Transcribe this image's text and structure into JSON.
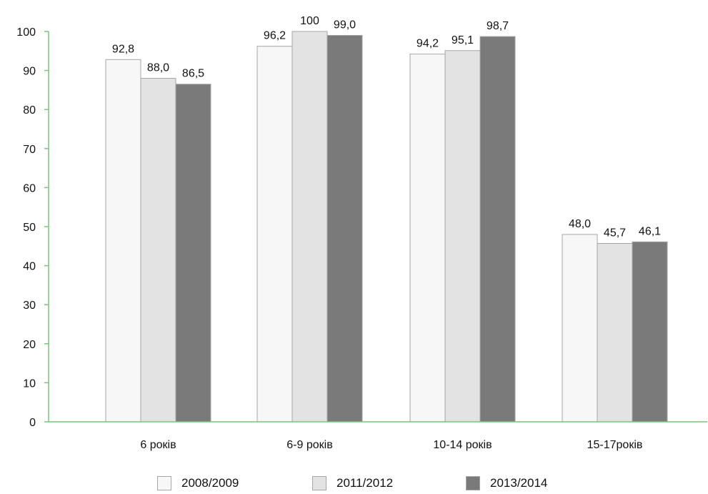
{
  "chart_data": {
    "type": "bar",
    "categories": [
      "6 років",
      "6-9 років",
      "10-14 років",
      "15-17років"
    ],
    "series": [
      {
        "name": "2008/2009",
        "values": [
          92.8,
          96.2,
          94.2,
          48.0
        ],
        "labels": [
          "92,8",
          "96,2",
          "94,2",
          "48,0"
        ],
        "color": "#f7f7f7"
      },
      {
        "name": "2011/2012",
        "values": [
          88.0,
          100,
          95.1,
          45.7
        ],
        "labels": [
          "88,0",
          "100",
          "95,1",
          "45,7"
        ],
        "color": "#e3e3e3"
      },
      {
        "name": "2013/2014",
        "values": [
          86.5,
          99.0,
          98.7,
          46.1
        ],
        "labels": [
          "86,5",
          "99,0",
          "98,7",
          "46,1"
        ],
        "color": "#7a7a7a"
      }
    ],
    "ylim": [
      0,
      100
    ],
    "yticks": [
      "0",
      "10",
      "20",
      "30",
      "40",
      "50",
      "60",
      "70",
      "80",
      "90",
      "100"
    ],
    "grid": false,
    "legend_position": "bottom",
    "axis_color": "#7cc47c"
  }
}
